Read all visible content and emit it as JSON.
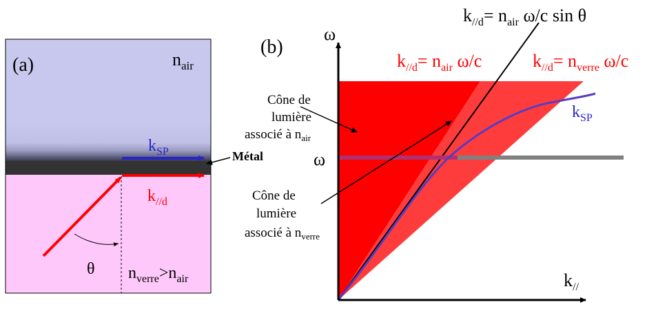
{
  "panel_a": {
    "label": "(a)",
    "n_air": {
      "base": "n",
      "sub": "air"
    },
    "k_sp": {
      "base": "k",
      "sub": "SP"
    },
    "k_par_d": {
      "base": "k",
      "sub": "//d"
    },
    "metal_label": "Métal",
    "theta": "θ",
    "index_relation": {
      "n1": "n",
      "n1_sub": "verre",
      "op": ">",
      "n2": "n",
      "n2_sub": "air"
    }
  },
  "panel_b": {
    "label": "(b)",
    "y_axis": "ω",
    "omega_marker": "ω",
    "x_axis": {
      "base": "k",
      "sub": "//"
    },
    "eq_top": {
      "lhs": "k",
      "lhs_sub": "//d",
      "rhs_pre": "= n",
      "rhs_sub": "air",
      "rhs_post": " ω/c sin θ"
    },
    "eq_air": {
      "lhs": "k",
      "lhs_sub": "//d",
      "rhs_pre": "= n",
      "rhs_sub": "air",
      "rhs_post": " ω/c"
    },
    "eq_verre": {
      "lhs": "k",
      "lhs_sub": "//d",
      "rhs_pre": "= n",
      "rhs_sub": "verre",
      "rhs_post": " ω/c"
    },
    "cone_air": {
      "line1": "Cône de",
      "line2": "lumière",
      "line3": "associé à n",
      "sub": "air"
    },
    "cone_verre": {
      "line1": "Cône de",
      "line2": "lumière",
      "line3": "associé à n",
      "sub": "verre"
    },
    "k_sp": {
      "base": "k",
      "sub": "SP"
    }
  },
  "colors": {
    "air_bg": "#c8c8ee",
    "glass_bg": "#ffc8fa",
    "metal": "#333333",
    "red": "#ff0000",
    "blue": "#2626c8",
    "cone_red": "#ff0000",
    "gray_line": "#808080"
  }
}
